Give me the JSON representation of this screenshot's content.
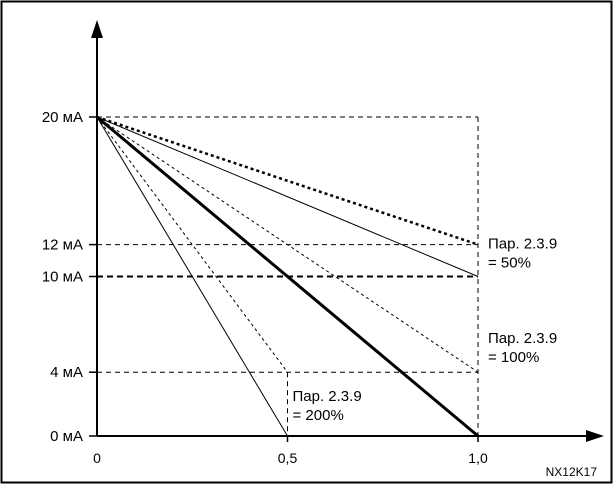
{
  "chart_data": {
    "type": "line",
    "title": "",
    "xlabel": "",
    "ylabel": "",
    "xlim": [
      0,
      1.25
    ],
    "ylim": [
      0,
      23.5
    ],
    "x_ticks": [
      {
        "value": 0,
        "label": "0"
      },
      {
        "value": 0.5,
        "label": "0,5"
      },
      {
        "value": 1.0,
        "label": "1,0"
      }
    ],
    "y_ticks": [
      {
        "value": 0,
        "label": "0 мА"
      },
      {
        "value": 4,
        "label": "4 мА"
      },
      {
        "value": 10,
        "label": "10 мА"
      },
      {
        "value": 12,
        "label": "12 мА"
      },
      {
        "value": 20,
        "label": "20 мА"
      }
    ],
    "series": [
      {
        "style": "dotted-thick",
        "points": [
          [
            0,
            20
          ],
          [
            1.0,
            12
          ]
        ]
      },
      {
        "style": "solid-thin",
        "points": [
          [
            0,
            20
          ],
          [
            1.0,
            10
          ]
        ]
      },
      {
        "style": "dashed-thin",
        "points": [
          [
            0,
            20
          ],
          [
            1.0,
            4
          ]
        ]
      },
      {
        "style": "solid-thick",
        "points": [
          [
            0,
            20
          ],
          [
            1.0,
            0
          ]
        ]
      },
      {
        "style": "dashed-thin",
        "points": [
          [
            0,
            20
          ],
          [
            0.5,
            4
          ]
        ]
      },
      {
        "style": "solid-thin",
        "points": [
          [
            0,
            20
          ],
          [
            0.5,
            0
          ]
        ]
      }
    ],
    "guides": [
      {
        "style": "dashed",
        "points": [
          [
            0,
            20
          ],
          [
            1.0,
            20
          ]
        ]
      },
      {
        "style": "dashed",
        "points": [
          [
            1.0,
            20
          ],
          [
            1.0,
            0
          ]
        ]
      },
      {
        "style": "dashed",
        "points": [
          [
            0,
            12
          ],
          [
            1.0,
            12
          ]
        ]
      },
      {
        "style": "dashed-bold",
        "points": [
          [
            0,
            10
          ],
          [
            1.0,
            10
          ]
        ]
      },
      {
        "style": "dashed",
        "points": [
          [
            0,
            4
          ],
          [
            1.0,
            4
          ]
        ]
      },
      {
        "style": "dashed",
        "points": [
          [
            0.5,
            4
          ],
          [
            0.5,
            0
          ]
        ]
      }
    ],
    "annotations": [
      {
        "lines": [
          "Пар. 2.3.9",
          "= 50%"
        ],
        "anchor": [
          1.0,
          10
        ]
      },
      {
        "lines": [
          "Пар. 2.3.9",
          "= 100%"
        ],
        "anchor": [
          1.0,
          4
        ]
      },
      {
        "lines": [
          "Пар. 2.3.9",
          "= 200%"
        ],
        "anchor": [
          0.5,
          0
        ]
      }
    ],
    "figure_code": "NX12K17",
    "grid": false,
    "legend": "none"
  }
}
